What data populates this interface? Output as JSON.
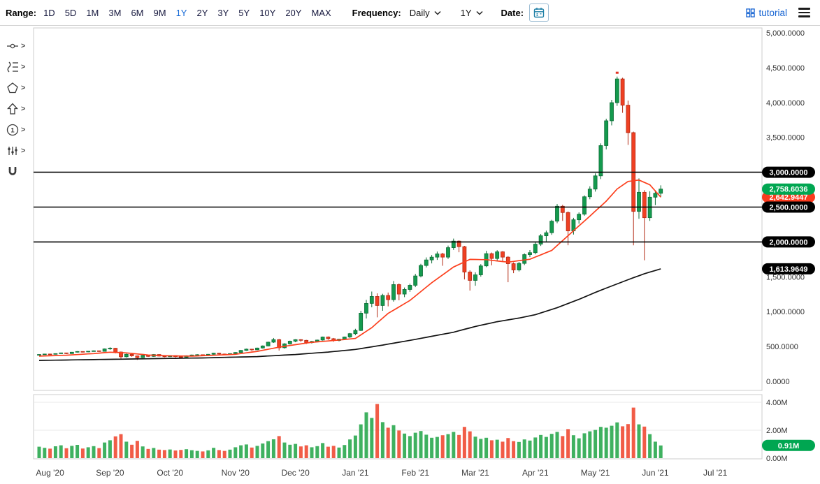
{
  "toolbar": {
    "range_label": "Range:",
    "ranges": [
      "1D",
      "5D",
      "1M",
      "3M",
      "6M",
      "9M",
      "1Y",
      "2Y",
      "3Y",
      "5Y",
      "10Y",
      "20Y",
      "MAX"
    ],
    "active_range": "1Y",
    "frequency_label": "Frequency:",
    "frequency_value": "Daily",
    "period_value": "1Y",
    "date_label": "Date:",
    "tutorial_label": "tutorial"
  },
  "side_tools": [
    {
      "name": "trendline-tool",
      "chevron": true
    },
    {
      "name": "fibonacci-tool",
      "chevron": true
    },
    {
      "name": "shapes-tool",
      "chevron": true
    },
    {
      "name": "arrow-tool",
      "chevron": true
    },
    {
      "name": "number-annotation-tool",
      "chevron": true
    },
    {
      "name": "indicators-tool",
      "chevron": true
    },
    {
      "name": "magnet-tool",
      "chevron": false
    }
  ],
  "chart_data": {
    "type": "candlestick",
    "x_tick_labels": [
      "Aug '20",
      "Sep '20",
      "Oct '20",
      "Nov '20",
      "Dec '20",
      "Jan '21",
      "Feb '21",
      "Mar '21",
      "Apr '21",
      "May '21",
      "Jun '21",
      "Jul '21"
    ],
    "month_tick_indices": [
      2,
      13,
      24,
      36,
      47,
      58,
      69,
      80,
      91,
      102,
      113,
      124
    ],
    "y_axis": {
      "range": [
        0,
        5000
      ],
      "ticks": [
        {
          "value": 5000,
          "label": "5,000.0000"
        },
        {
          "value": 4500,
          "label": "4,500.0000"
        },
        {
          "value": 4000,
          "label": "4,000.0000"
        },
        {
          "value": 3500,
          "label": "3,500.0000"
        },
        {
          "value": 1500,
          "label": "1,500.0000"
        },
        {
          "value": 1000,
          "label": "1,000.0000"
        },
        {
          "value": 500,
          "label": "500.0000"
        },
        {
          "value": 0,
          "label": "0.0000"
        }
      ]
    },
    "price_lines": [
      {
        "value": 3000,
        "label": "3,000.0000"
      },
      {
        "value": 2500,
        "label": "2,500.0000"
      },
      {
        "value": 2000,
        "label": "2,000.0000"
      }
    ],
    "badges": {
      "last_price": {
        "value": 2758.6036,
        "label": "2,758.6036",
        "color": "#00a651"
      },
      "red_ma": {
        "value": 2642.9447,
        "label": "2,642.9447",
        "color": "#fb3b1e"
      },
      "black_ma": {
        "value": 1613.9649,
        "label": "1,613.9649",
        "color": "#000000"
      },
      "volume": {
        "value": 0.91,
        "label": "0.91M",
        "color": "#00a651"
      }
    },
    "volume_axis": {
      "range": [
        0,
        4.6
      ],
      "ticks": [
        {
          "value": 4,
          "label": "4.00M"
        },
        {
          "value": 2,
          "label": "2.00M"
        },
        {
          "value": 0,
          "label": "0.00M"
        }
      ]
    },
    "colors": {
      "up": "#149a4e",
      "up_stroke": "#0b6b34",
      "down": "#ef4023",
      "down_stroke": "#b32b15",
      "vol_up": "#2aa84f",
      "vol_down": "#ef4a33",
      "red_ma": "#fc3f1d",
      "black_ma": "#111111",
      "price_line": "#000000",
      "active_range": "#1569d6"
    },
    "peak_marker_index": 106,
    "series": {
      "candles_ohlcv": [
        [
          380,
          390,
          374,
          385,
          0.82
        ],
        [
          385,
          396,
          381,
          392,
          0.74
        ],
        [
          392,
          397,
          383,
          388,
          0.68
        ],
        [
          388,
          401,
          385,
          398,
          0.85
        ],
        [
          398,
          412,
          394,
          408,
          0.92
        ],
        [
          408,
          411,
          391,
          398,
          0.71
        ],
        [
          398,
          421,
          395,
          418,
          0.88
        ],
        [
          418,
          433,
          414,
          428,
          0.95
        ],
        [
          428,
          431,
          415,
          422,
          0.69
        ],
        [
          422,
          436,
          418,
          432,
          0.78
        ],
        [
          432,
          444,
          427,
          438,
          0.86
        ],
        [
          438,
          442,
          422,
          430,
          0.72
        ],
        [
          430,
          471,
          428,
          465,
          1.12
        ],
        [
          465,
          489,
          452,
          475,
          1.28
        ],
        [
          475,
          481,
          402,
          420,
          1.56
        ],
        [
          420,
          428,
          318,
          352,
          1.72
        ],
        [
          352,
          398,
          342,
          388,
          1.18
        ],
        [
          388,
          394,
          352,
          365,
          0.96
        ],
        [
          365,
          369,
          308,
          340,
          1.24
        ],
        [
          340,
          378,
          334,
          372,
          0.84
        ],
        [
          372,
          379,
          349,
          358,
          0.66
        ],
        [
          358,
          391,
          352,
          385,
          0.73
        ],
        [
          385,
          389,
          355,
          362,
          0.61
        ],
        [
          362,
          371,
          344,
          353,
          0.58
        ],
        [
          353,
          375,
          348,
          370,
          0.62
        ],
        [
          370,
          373,
          342,
          354,
          0.55
        ],
        [
          354,
          360,
          332,
          346,
          0.59
        ],
        [
          346,
          372,
          341,
          368,
          0.64
        ],
        [
          368,
          384,
          362,
          378,
          0.57
        ],
        [
          378,
          389,
          371,
          382,
          0.52
        ],
        [
          382,
          386,
          366,
          375,
          0.48
        ],
        [
          375,
          392,
          370,
          388,
          0.56
        ],
        [
          388,
          409,
          383,
          404,
          0.74
        ],
        [
          404,
          408,
          384,
          392,
          0.58
        ],
        [
          392,
          397,
          376,
          386,
          0.52
        ],
        [
          386,
          402,
          380,
          398,
          0.61
        ],
        [
          398,
          418,
          392,
          414,
          0.78
        ],
        [
          414,
          449,
          409,
          444,
          0.92
        ],
        [
          444,
          469,
          438,
          462,
          0.98
        ],
        [
          462,
          466,
          434,
          452,
          0.76
        ],
        [
          452,
          483,
          446,
          478,
          0.88
        ],
        [
          478,
          515,
          471,
          508,
          1.05
        ],
        [
          508,
          569,
          502,
          562,
          1.22
        ],
        [
          562,
          622,
          551,
          598,
          1.35
        ],
        [
          598,
          608,
          442,
          482,
          1.58
        ],
        [
          482,
          547,
          470,
          538,
          1.12
        ],
        [
          538,
          584,
          528,
          576,
          0.96
        ],
        [
          576,
          604,
          562,
          598,
          1.02
        ],
        [
          598,
          606,
          566,
          588,
          0.84
        ],
        [
          588,
          595,
          536,
          556,
          0.92
        ],
        [
          556,
          581,
          542,
          572,
          0.78
        ],
        [
          572,
          599,
          561,
          592,
          0.86
        ],
        [
          592,
          642,
          584,
          636,
          1.08
        ],
        [
          636,
          644,
          596,
          612,
          0.82
        ],
        [
          612,
          622,
          568,
          586,
          0.88
        ],
        [
          586,
          611,
          574,
          604,
          0.76
        ],
        [
          604,
          642,
          594,
          636,
          0.94
        ],
        [
          636,
          694,
          622,
          684,
          1.34
        ],
        [
          684,
          754,
          662,
          730,
          1.62
        ],
        [
          730,
          1012,
          722,
          978,
          2.42
        ],
        [
          978,
          1169,
          902,
          1118,
          3.28
        ],
        [
          1118,
          1288,
          1062,
          1218,
          2.88
        ],
        [
          1218,
          1262,
          918,
          1088,
          3.88
        ],
        [
          1088,
          1256,
          1012,
          1232,
          2.58
        ],
        [
          1232,
          1274,
          1076,
          1172,
          2.18
        ],
        [
          1172,
          1439,
          1144,
          1388,
          2.36
        ],
        [
          1388,
          1404,
          1162,
          1252,
          1.98
        ],
        [
          1252,
          1346,
          1208,
          1318,
          1.76
        ],
        [
          1318,
          1402,
          1284,
          1378,
          1.58
        ],
        [
          1378,
          1542,
          1352,
          1512,
          1.82
        ],
        [
          1512,
          1686,
          1492,
          1662,
          1.94
        ],
        [
          1662,
          1778,
          1634,
          1742,
          1.68
        ],
        [
          1742,
          1812,
          1692,
          1782,
          1.46
        ],
        [
          1782,
          1862,
          1742,
          1828,
          1.52
        ],
        [
          1828,
          1844,
          1658,
          1782,
          1.64
        ],
        [
          1782,
          1948,
          1756,
          1918,
          1.72
        ],
        [
          1918,
          2048,
          1886,
          2012,
          1.88
        ],
        [
          2012,
          2022,
          1852,
          1932,
          1.66
        ],
        [
          1932,
          1944,
          1462,
          1568,
          2.24
        ],
        [
          1568,
          1592,
          1302,
          1448,
          1.92
        ],
        [
          1448,
          1564,
          1372,
          1528,
          1.54
        ],
        [
          1528,
          1682,
          1502,
          1656,
          1.38
        ],
        [
          1656,
          1872,
          1638,
          1832,
          1.46
        ],
        [
          1832,
          1848,
          1664,
          1762,
          1.28
        ],
        [
          1762,
          1882,
          1732,
          1858,
          1.32
        ],
        [
          1858,
          1868,
          1722,
          1782,
          1.18
        ],
        [
          1782,
          1796,
          1422,
          1688,
          1.44
        ],
        [
          1688,
          1706,
          1552,
          1598,
          1.22
        ],
        [
          1598,
          1714,
          1576,
          1692,
          1.16
        ],
        [
          1692,
          1836,
          1668,
          1818,
          1.34
        ],
        [
          1818,
          1884,
          1782,
          1846,
          1.26
        ],
        [
          1846,
          1994,
          1822,
          1968,
          1.48
        ],
        [
          1968,
          2114,
          1942,
          2088,
          1.66
        ],
        [
          2088,
          2162,
          2006,
          2132,
          1.52
        ],
        [
          2132,
          2318,
          2102,
          2298,
          1.74
        ],
        [
          2298,
          2544,
          2268,
          2512,
          1.88
        ],
        [
          2512,
          2532,
          2302,
          2422,
          1.58
        ],
        [
          2422,
          2438,
          1952,
          2158,
          2.08
        ],
        [
          2158,
          2346,
          2106,
          2318,
          1.64
        ],
        [
          2318,
          2424,
          2262,
          2398,
          1.42
        ],
        [
          2398,
          2668,
          2376,
          2648,
          1.78
        ],
        [
          2648,
          2798,
          2612,
          2758,
          1.92
        ],
        [
          2758,
          2984,
          2722,
          2948,
          2.02
        ],
        [
          2948,
          3414,
          2902,
          3382,
          2.24
        ],
        [
          3382,
          3768,
          3328,
          3738,
          2.18
        ],
        [
          3738,
          4038,
          3672,
          3998,
          2.32
        ],
        [
          3998,
          4372,
          3952,
          4338,
          2.56
        ],
        [
          4338,
          4356,
          3852,
          3962,
          2.28
        ],
        [
          3962,
          4028,
          3392,
          3568,
          2.44
        ],
        [
          3568,
          3582,
          1952,
          2438,
          3.62
        ],
        [
          2438,
          2912,
          2332,
          2712,
          2.42
        ],
        [
          2712,
          2742,
          1737,
          2348,
          2.26
        ],
        [
          2348,
          2726,
          2302,
          2642,
          1.72
        ],
        [
          2642,
          2742,
          2528,
          2698,
          1.18
        ],
        [
          2698,
          2812,
          2642,
          2758.6,
          0.91
        ]
      ],
      "red_ma_points": [
        [
          0,
          362
        ],
        [
          5,
          375
        ],
        [
          10,
          398
        ],
        [
          13,
          418
        ],
        [
          16,
          408
        ],
        [
          20,
          378
        ],
        [
          24,
          366
        ],
        [
          28,
          362
        ],
        [
          32,
          374
        ],
        [
          36,
          388
        ],
        [
          40,
          430
        ],
        [
          44,
          490
        ],
        [
          47,
          526
        ],
        [
          50,
          560
        ],
        [
          54,
          586
        ],
        [
          58,
          615
        ],
        [
          61,
          770
        ],
        [
          64,
          975
        ],
        [
          68,
          1160
        ],
        [
          72,
          1415
        ],
        [
          76,
          1640
        ],
        [
          79,
          1750
        ],
        [
          82,
          1745
        ],
        [
          86,
          1710
        ],
        [
          90,
          1752
        ],
        [
          94,
          1878
        ],
        [
          98,
          2160
        ],
        [
          101,
          2370
        ],
        [
          104,
          2585
        ],
        [
          106,
          2760
        ],
        [
          108,
          2868
        ],
        [
          110,
          2888
        ],
        [
          112,
          2820
        ],
        [
          114,
          2642.94
        ]
      ],
      "black_ma_points": [
        [
          0,
          300
        ],
        [
          10,
          312
        ],
        [
          20,
          324
        ],
        [
          30,
          336
        ],
        [
          40,
          355
        ],
        [
          47,
          385
        ],
        [
          53,
          420
        ],
        [
          58,
          458
        ],
        [
          63,
          520
        ],
        [
          68,
          588
        ],
        [
          72,
          646
        ],
        [
          76,
          704
        ],
        [
          80,
          788
        ],
        [
          84,
          856
        ],
        [
          88,
          908
        ],
        [
          91,
          956
        ],
        [
          95,
          1056
        ],
        [
          99,
          1176
        ],
        [
          102,
          1276
        ],
        [
          105,
          1368
        ],
        [
          108,
          1458
        ],
        [
          111,
          1544
        ],
        [
          114,
          1613.96
        ]
      ]
    }
  }
}
